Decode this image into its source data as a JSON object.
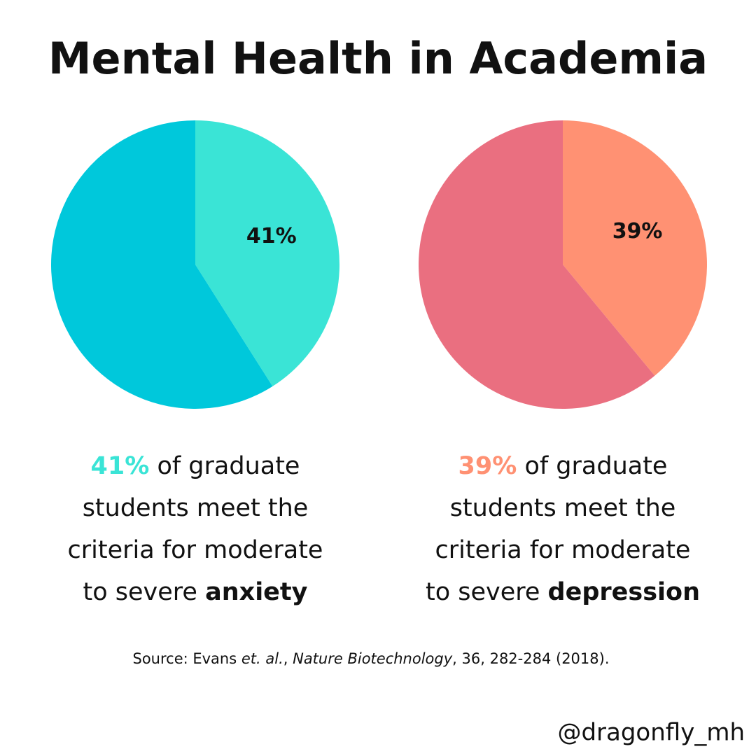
{
  "title": "Mental Health in Academia",
  "chart_data": [
    {
      "type": "pie",
      "values": [
        41,
        59
      ],
      "value_labels": [
        "41%",
        null
      ],
      "colors": [
        "#3ae4d6",
        "#00c8db"
      ],
      "caption": {
        "highlight": "41%",
        "lines": [
          "of graduate",
          "students meet the",
          "criteria for moderate",
          "to severe"
        ],
        "emphasis": "anxiety"
      }
    },
    {
      "type": "pie",
      "values": [
        39,
        61
      ],
      "value_labels": [
        "39%",
        null
      ],
      "colors": [
        "#ff9173",
        "#ea6f80"
      ],
      "caption": {
        "highlight": "39%",
        "lines": [
          "of graduate",
          "students meet the",
          "criteria for moderate",
          "to severe"
        ],
        "emphasis": "depression"
      }
    }
  ],
  "source": [
    {
      "text": "Source: Evans "
    },
    {
      "text": "et. al.",
      "italic": true
    },
    {
      "text": ", "
    },
    {
      "text": "Nature Biotechnology",
      "italic": true
    },
    {
      "text": ", 36, 282-284 (2018)."
    }
  ],
  "handle": "@dragonfly_mh"
}
